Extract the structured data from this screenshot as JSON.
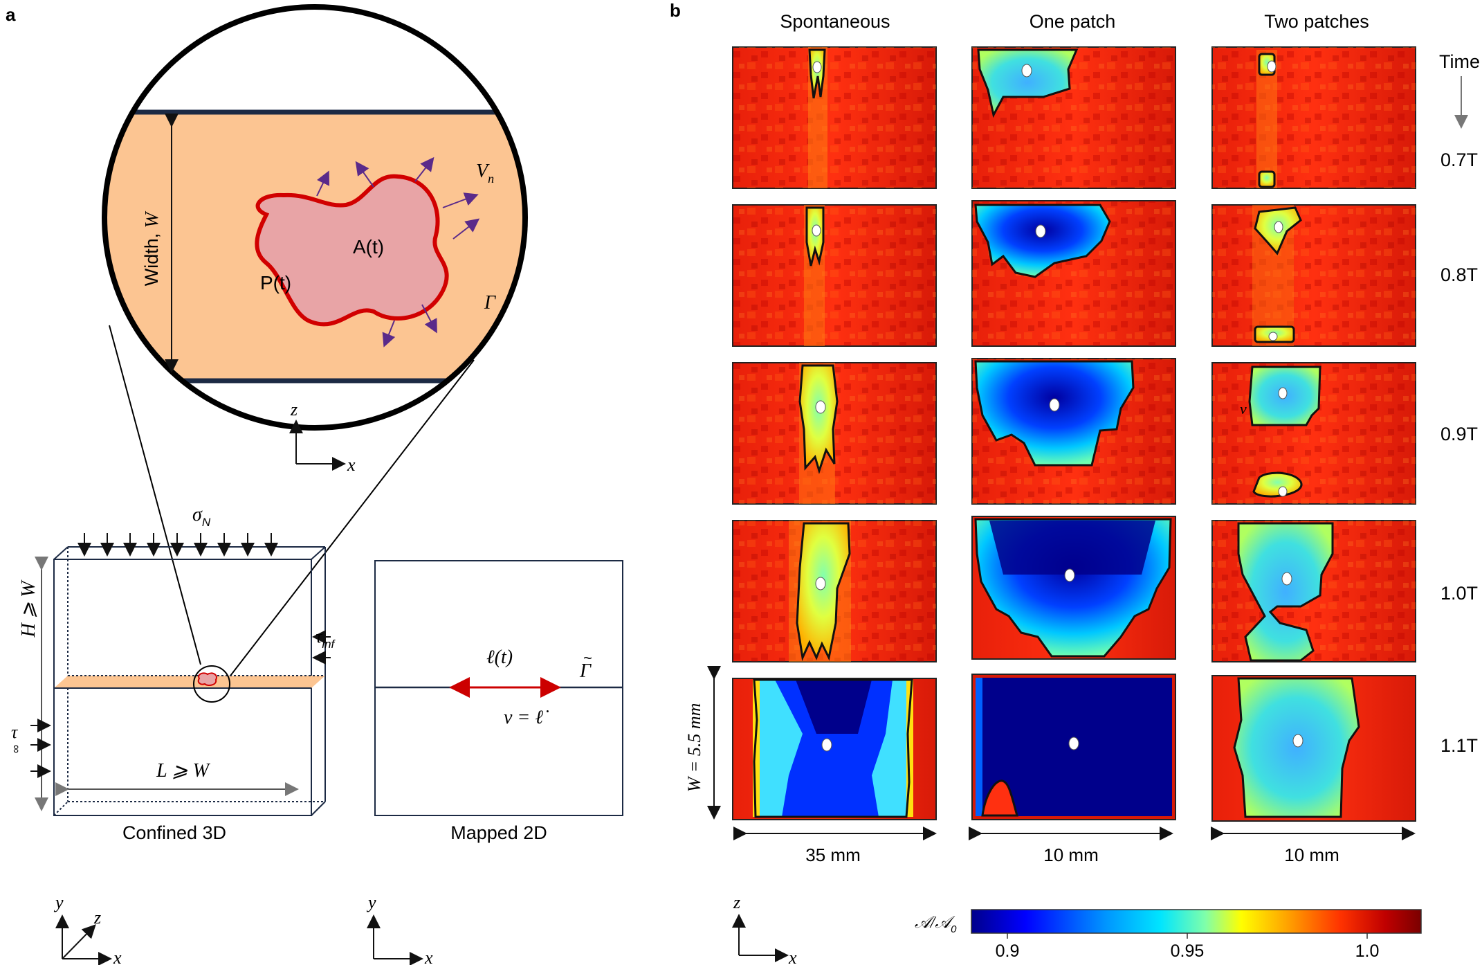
{
  "panel_a": {
    "label": "a",
    "width_label_prefix": "Width, ",
    "width_label_var": "W",
    "vn_label": "V",
    "vn_sub": "n",
    "area_label": "A(t)",
    "perimeter_label": "P(t)",
    "gamma_label": "Γ",
    "zoom_axis": {
      "z": "z",
      "x": "x"
    },
    "sigma_label": "σ",
    "sigma_sub": "N",
    "height_label": "H ⩾ W",
    "tau_inf_label": "τ",
    "tau_inf_sub": "inf",
    "tau_label": "τ",
    "tau_sub": "∞",
    "length_label": "L ⩾ W",
    "ell_label": "ℓ(t)",
    "gamma_tilde_label": "Γ",
    "nu_label": "ν = ℓ̇",
    "caption_3d": "Confined 3D",
    "caption_2d": "Mapped 2D",
    "axes3d": {
      "y": "y",
      "z": "z",
      "x": "x"
    },
    "axes2d": {
      "y": "y",
      "x": "x"
    }
  },
  "panel_b": {
    "label": "b",
    "columns": [
      "Spontaneous",
      "One patch",
      "Two patches"
    ],
    "time_label": "Time",
    "times": [
      "0.7T",
      "0.8T",
      "0.9T",
      "1.0T",
      "1.1T"
    ],
    "w_label": "W = 5.5 mm",
    "widths": [
      "35 mm",
      "10 mm",
      "10 mm"
    ],
    "axis": {
      "z": "z",
      "x": "x"
    },
    "vr_label": "v",
    "colorbar": {
      "label": "𝒜/𝒜",
      "label_sub": "0",
      "ticks": [
        "0.9",
        "0.95",
        "1.0"
      ],
      "tick_values": [
        0.9,
        0.95,
        1.0
      ],
      "range": [
        0.89,
        1.015
      ],
      "colors": [
        "#00008b",
        "#0000ff",
        "#0096ff",
        "#00e5ff",
        "#7fffaa",
        "#ffff00",
        "#ffa500",
        "#ff3300",
        "#b00000",
        "#7a0000"
      ]
    }
  }
}
